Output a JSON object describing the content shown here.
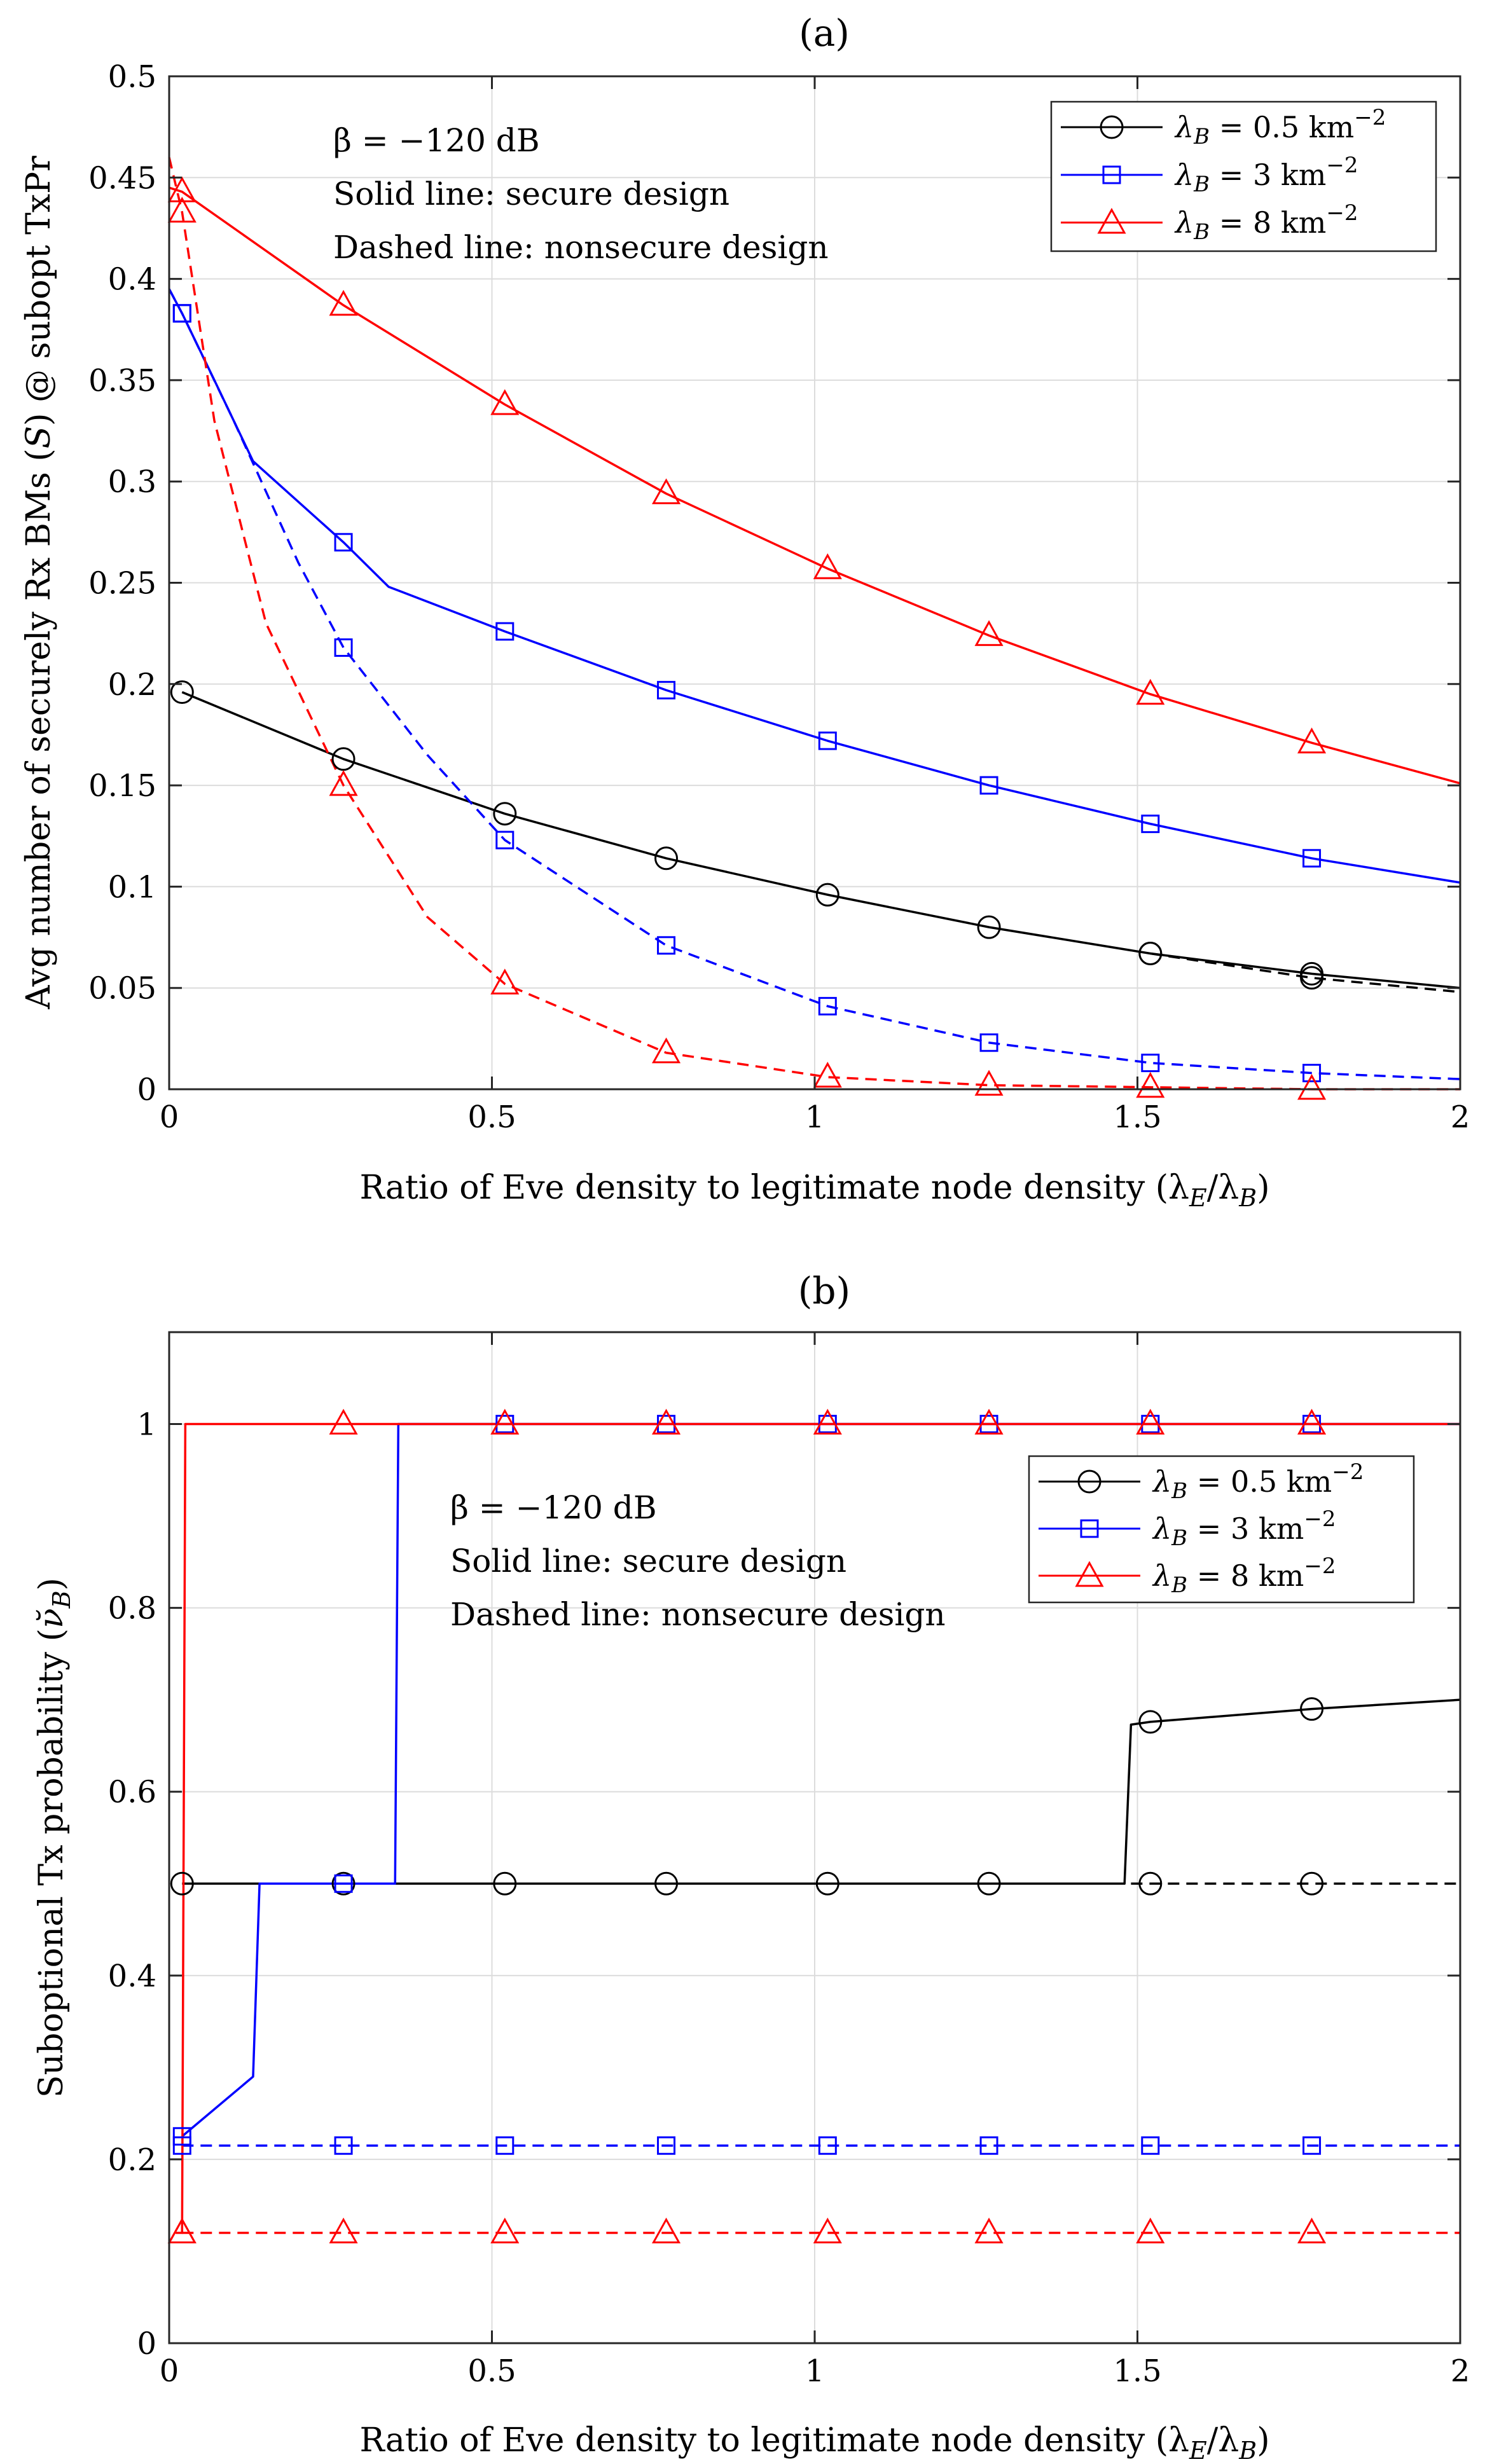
{
  "chart_data": [
    {
      "type": "line",
      "title": "(a)",
      "xlabel": "Ratio of Eve density to legitimate node density (λE/λB)",
      "ylabel": "Avg number of securely Rx BMs (S) @ subopt TxPr",
      "xlim": [
        0,
        2
      ],
      "ylim": [
        0,
        0.5
      ],
      "xticks": [
        0,
        0.5,
        1,
        1.5,
        2
      ],
      "yticks": [
        0,
        0.05,
        0.1,
        0.15,
        0.2,
        0.25,
        0.3,
        0.35,
        0.4,
        0.45,
        0.5
      ],
      "xtick_labels": [
        "0",
        "0.5",
        "1",
        "1.5",
        "2"
      ],
      "ytick_labels": [
        "0",
        "0.05",
        "0.1",
        "0.15",
        "0.2",
        "0.25",
        "0.3",
        "0.35",
        "0.4",
        "0.45",
        "0.5"
      ],
      "grid": true,
      "annotations": [
        "β = −120 dB",
        "Solid line: secure design",
        "Dashed line: nonsecure design"
      ],
      "legend_position": "top-right",
      "series": [
        {
          "name": "λB = 0.5 km−2",
          "color": "#000000",
          "marker": "circle",
          "style": "solid",
          "x": [
            0.02,
            0.27,
            0.52,
            0.77,
            1.02,
            1.27,
            1.52,
            1.77,
            2.0
          ],
          "y": [
            0.196,
            0.163,
            0.136,
            0.114,
            0.096,
            0.08,
            0.067,
            0.057,
            0.05
          ]
        },
        {
          "name": "λB = 0.5 km−2",
          "color": "#000000",
          "marker": "circle",
          "style": "dashed",
          "x": [
            1.52,
            1.77,
            2.0
          ],
          "y": [
            0.067,
            0.055,
            0.048
          ]
        },
        {
          "name": "λB = 3 km−2",
          "color": "#0000ff",
          "marker": "square",
          "style": "solid",
          "x": [
            0.0,
            0.02,
            0.07,
            0.13,
            0.27,
            0.34,
            0.52,
            0.77,
            1.02,
            1.27,
            1.52,
            1.77,
            2.0
          ],
          "y": [
            0.395,
            0.383,
            0.35,
            0.31,
            0.27,
            0.248,
            0.226,
            0.197,
            0.172,
            0.15,
            0.131,
            0.114,
            0.102
          ]
        },
        {
          "name": "λB = 3 km−2",
          "color": "#0000ff",
          "marker": "square",
          "style": "dashed",
          "x": [
            0.0,
            0.02,
            0.1,
            0.2,
            0.27,
            0.4,
            0.52,
            0.77,
            1.02,
            1.27,
            1.52,
            1.77,
            2.0
          ],
          "y": [
            0.395,
            0.383,
            0.33,
            0.26,
            0.218,
            0.165,
            0.123,
            0.071,
            0.041,
            0.023,
            0.013,
            0.008,
            0.005
          ]
        },
        {
          "name": "λB = 8 km−2",
          "color": "#ff0000",
          "marker": "triangle",
          "style": "solid",
          "x": [
            0.0,
            0.02,
            0.27,
            0.52,
            0.77,
            1.02,
            1.27,
            1.52,
            1.77,
            2.0
          ],
          "y": [
            0.445,
            0.443,
            0.387,
            0.338,
            0.294,
            0.257,
            0.224,
            0.195,
            0.171,
            0.151
          ]
        },
        {
          "name": "λB = 8 km−2",
          "color": "#ff0000",
          "marker": "triangle",
          "style": "dashed",
          "x": [
            0.0,
            0.02,
            0.07,
            0.15,
            0.27,
            0.4,
            0.52,
            0.77,
            1.02,
            1.27,
            1.52,
            1.77,
            2.0
          ],
          "y": [
            0.46,
            0.433,
            0.33,
            0.23,
            0.15,
            0.085,
            0.052,
            0.018,
            0.006,
            0.002,
            0.001,
            0.0,
            0.0
          ]
        }
      ],
      "markers_x": [
        0.02,
        0.27,
        0.52,
        0.77,
        1.02,
        1.27,
        1.52,
        1.77
      ]
    },
    {
      "type": "line",
      "title": "(b)",
      "xlabel": "Ratio of Eve density to legitimate node density (λE/λB)",
      "ylabel": "Suboptional Tx probability (ν̆B)",
      "xlim": [
        0,
        2
      ],
      "ylim": [
        0,
        1.1
      ],
      "xticks": [
        0,
        0.5,
        1,
        1.5,
        2
      ],
      "yticks": [
        0,
        0.2,
        0.4,
        0.6,
        0.8,
        1
      ],
      "xtick_labels": [
        "0",
        "0.5",
        "1",
        "1.5",
        "2"
      ],
      "ytick_labels": [
        "0",
        "0.2",
        "0.4",
        "0.6",
        "0.8",
        "1"
      ],
      "grid": true,
      "annotations": [
        "β = −120 dB",
        "Solid line: secure design",
        "Dashed line: nonsecure design"
      ],
      "legend_position": "top-right",
      "series": [
        {
          "name": "λB = 0.5 km−2",
          "color": "#000000",
          "marker": "circle",
          "style": "solid",
          "x": [
            0.02,
            0.27,
            0.52,
            0.77,
            1.02,
            1.27,
            1.48,
            1.49,
            1.52,
            1.77,
            2.0
          ],
          "y": [
            0.5,
            0.5,
            0.5,
            0.5,
            0.5,
            0.5,
            0.5,
            0.673,
            0.676,
            0.69,
            0.7
          ]
        },
        {
          "name": "λB = 0.5 km−2",
          "color": "#000000",
          "marker": "circle",
          "style": "dashed",
          "x": [
            1.49,
            1.52,
            1.77,
            2.0
          ],
          "y": [
            0.5,
            0.5,
            0.5,
            0.5
          ]
        },
        {
          "name": "λB = 3 km−2",
          "color": "#0000ff",
          "marker": "square",
          "style": "solid",
          "x": [
            0.02,
            0.13,
            0.14,
            0.27,
            0.35,
            0.355,
            0.52,
            0.77,
            1.02,
            1.27,
            1.52,
            1.77,
            2.0
          ],
          "y": [
            0.225,
            0.29,
            0.5,
            0.5,
            0.5,
            1.0,
            1.0,
            1.0,
            1.0,
            1.0,
            1.0,
            1.0,
            1.0
          ]
        },
        {
          "name": "λB = 3 km−2",
          "color": "#0000ff",
          "marker": "square",
          "style": "dashed",
          "x": [
            0.02,
            2.0
          ],
          "y": [
            0.215,
            0.215
          ]
        },
        {
          "name": "λB = 8 km−2",
          "color": "#ff0000",
          "marker": "triangle",
          "style": "solid",
          "x": [
            0.01,
            0.02,
            0.025,
            2.0
          ],
          "y": [
            0.12,
            0.12,
            1.0,
            1.0
          ]
        },
        {
          "name": "λB = 8 km−2",
          "color": "#ff0000",
          "marker": "triangle",
          "style": "dashed",
          "x": [
            0.02,
            2.0
          ],
          "y": [
            0.12,
            0.12
          ]
        }
      ],
      "markers_x": [
        0.02,
        0.27,
        0.52,
        0.77,
        1.02,
        1.27,
        1.52,
        1.77
      ]
    }
  ],
  "legend_text": {
    "black": {
      "sym": "λ",
      "sub": "B",
      "rest": " = 0.5 km",
      "sup": "−2"
    },
    "blue": {
      "sym": "λ",
      "sub": "B",
      "rest": " = 3 km",
      "sup": "−2"
    },
    "red": {
      "sym": "λ",
      "sub": "B",
      "rest": " = 8 km",
      "sup": "−2"
    }
  },
  "annotation_text": {
    "beta": "β = −120 dB",
    "solid": "Solid line: secure design",
    "dashed": "Dashed line: nonsecure design"
  },
  "label_text": {
    "xlabel_main": "Ratio of Eve density to legitimate node density (λ",
    "xlabel_sub1": "E",
    "xlabel_mid": "/λ",
    "xlabel_sub2": "B",
    "xlabel_end": ")",
    "ylabel_a_main": "Avg number of securely Rx BMs (",
    "ylabel_a_sym": "S",
    "ylabel_a_end": ") @ subopt TxPr",
    "ylabel_b_main": "Suboptional Tx probability (",
    "ylabel_b_sym": "ν̆",
    "ylabel_b_sub": "B",
    "ylabel_b_end": ")"
  }
}
